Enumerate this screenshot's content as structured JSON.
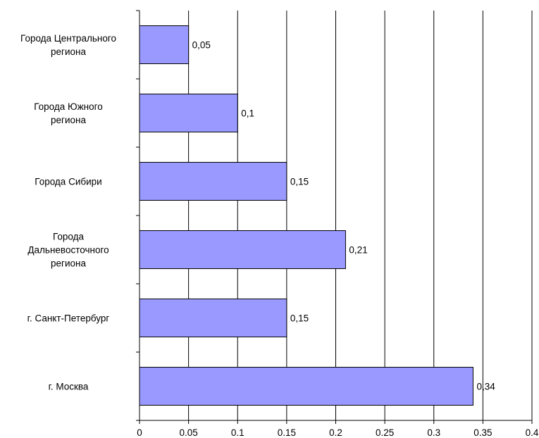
{
  "chart_data": {
    "type": "bar",
    "orientation": "horizontal",
    "categories": [
      "Города Центрального региона",
      "Города Южного региона",
      "Города Сибири",
      "Города Дальневосточного региона",
      "г. Санкт-Петербург",
      "г. Москва"
    ],
    "values": [
      0.05,
      0.1,
      0.15,
      0.21,
      0.15,
      0.34
    ],
    "data_labels": [
      "0,05",
      "0,1",
      "0,15",
      "0,21",
      "0,15",
      "0,34"
    ],
    "x_ticks": [
      "0",
      "0.05",
      "0.1",
      "0.15",
      "0.2",
      "0.25",
      "0.3",
      "0.35",
      "0.4"
    ],
    "xlim": [
      0,
      0.4
    ],
    "grid": "vertical",
    "legend": "none",
    "bar_color": "#9999ff",
    "bar_border_color": "#000000"
  }
}
